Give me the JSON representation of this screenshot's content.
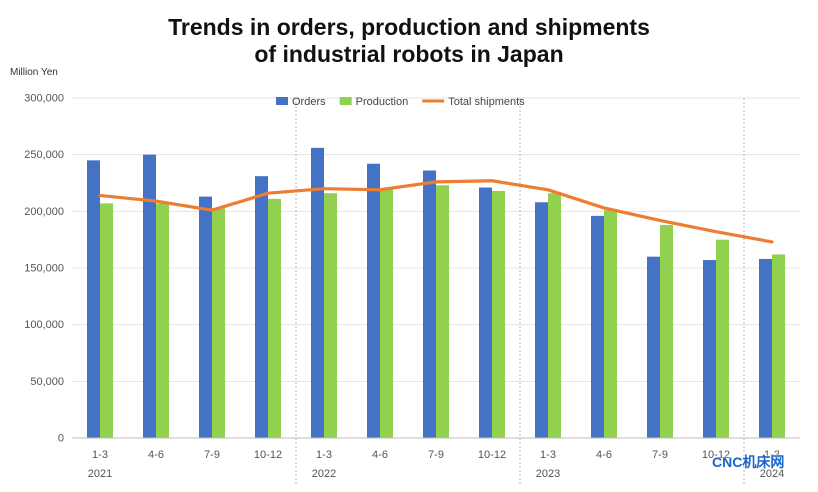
{
  "chart_data": {
    "type": "bar",
    "title_lines": [
      "Trends in orders, production and shipments",
      "of industrial robots in Japan"
    ],
    "ylabel": "Million Yen",
    "ylim": [
      0,
      300000
    ],
    "yticks": [
      0,
      50000,
      100000,
      150000,
      200000,
      250000,
      300000
    ],
    "ytick_labels": [
      "0",
      "50,000",
      "100,000",
      "150,000",
      "200,000",
      "250,000",
      "300,000"
    ],
    "grid": true,
    "legend_position": "top",
    "categories": [
      "1-3",
      "4-6",
      "7-9",
      "10-12",
      "1-3",
      "4-6",
      "7-9",
      "10-12",
      "1-3",
      "4-6",
      "7-9",
      "10-12",
      "1-3"
    ],
    "years": [
      {
        "label": "2021",
        "start_index": 0
      },
      {
        "label": "2022",
        "start_index": 4
      },
      {
        "label": "2023",
        "start_index": 8
      },
      {
        "label": "2024",
        "start_index": 12
      }
    ],
    "series": [
      {
        "name": "Orders",
        "kind": "bar",
        "color": "#4472c4",
        "values": [
          245000,
          250000,
          213000,
          231000,
          256000,
          242000,
          236000,
          221000,
          208000,
          196000,
          160000,
          157000,
          158000
        ]
      },
      {
        "name": "Production",
        "kind": "bar",
        "color": "#92d050",
        "values": [
          207000,
          207000,
          203000,
          211000,
          216000,
          220000,
          223000,
          218000,
          216000,
          201000,
          188000,
          175000,
          162000
        ]
      },
      {
        "name": "Total shipments",
        "kind": "line",
        "color": "#ed7d31",
        "values": [
          214000,
          209000,
          201000,
          216000,
          220000,
          219000,
          226000,
          227000,
          219000,
          203000,
          192000,
          182000,
          173000
        ]
      }
    ]
  },
  "watermark": "CNC机床网"
}
